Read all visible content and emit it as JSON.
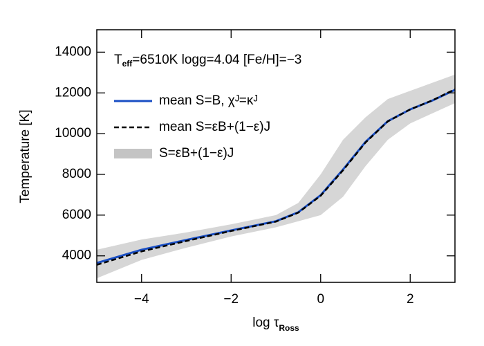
{
  "chart_data": {
    "type": "line",
    "annotation": {
      "main": "T",
      "sub": "eff",
      "rest": "=6510K  logg=4.04  [Fe/H]=−3"
    },
    "x_label": {
      "main": "log τ",
      "sub": "Ross"
    },
    "y_label": "Temperature [K]",
    "x": [
      -5,
      -4,
      -3,
      -2,
      -1,
      -0.5,
      0,
      0.5,
      1,
      1.5,
      2,
      2.5,
      3
    ],
    "series": [
      {
        "name": "mean S=B, χᴶ=κᴶ",
        "color": "#1a4fc4",
        "dash": false,
        "values": [
          3650,
          4300,
          4780,
          5250,
          5700,
          6140,
          6980,
          8240,
          9590,
          10610,
          11190,
          11630,
          12150
        ]
      },
      {
        "name": "mean S=εB+(1−ε)J",
        "color": "#000000",
        "dash": true,
        "values": [
          3560,
          4220,
          4730,
          5220,
          5680,
          6120,
          6950,
          8200,
          9560,
          10600,
          11190,
          11640,
          12180
        ]
      }
    ],
    "band": {
      "name": "S=εB+(1−ε)J",
      "color": "#c4c4c4",
      "lower": [
        2900,
        3800,
        4400,
        4950,
        5400,
        5700,
        6000,
        6900,
        8400,
        9700,
        10500,
        11000,
        11500
      ],
      "upper": [
        4300,
        4800,
        5150,
        5550,
        6000,
        6600,
        8000,
        9700,
        10800,
        11700,
        12100,
        12500,
        12900
      ]
    },
    "xlim": [
      -5,
      3
    ],
    "ylim": [
      2700,
      15100
    ],
    "xticks": [
      {
        "value": -4,
        "label": "−4"
      },
      {
        "value": -2,
        "label": "−2"
      },
      0,
      2
    ],
    "yticks": [
      4000,
      6000,
      8000,
      10000,
      12000,
      14000
    ]
  }
}
